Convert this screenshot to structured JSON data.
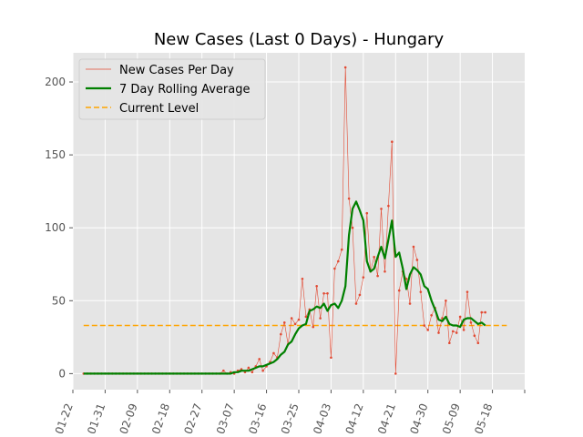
{
  "chart_data": {
    "type": "line",
    "title": "New Cases (Last 0 Days) - Hungary",
    "xlabel": "",
    "ylabel": "",
    "x_ticks": [
      "01-22",
      "01-31",
      "02-09",
      "02-18",
      "02-27",
      "03-07",
      "03-16",
      "03-25",
      "04-03",
      "04-12",
      "04-21",
      "04-30",
      "05-09",
      "05-18"
    ],
    "y_ticks": [
      0,
      50,
      100,
      150,
      200
    ],
    "xlim": [
      "2020-01-22",
      "2020-05-27"
    ],
    "ylim": [
      -11,
      220
    ],
    "grid": true,
    "legend_position": "upper-left",
    "colors": {
      "new_cases": "#e24a33",
      "rolling": "#008000",
      "current": "#ffa500",
      "background": "#e5e5e5",
      "grid": "#ffffff"
    },
    "x_dates": [
      "2020-01-25",
      "2020-01-26",
      "2020-01-27",
      "2020-01-28",
      "2020-01-29",
      "2020-01-30",
      "2020-01-31",
      "2020-02-01",
      "2020-02-02",
      "2020-02-03",
      "2020-02-04",
      "2020-02-05",
      "2020-02-06",
      "2020-02-07",
      "2020-02-08",
      "2020-02-09",
      "2020-02-10",
      "2020-02-11",
      "2020-02-12",
      "2020-02-13",
      "2020-02-14",
      "2020-02-15",
      "2020-02-16",
      "2020-02-17",
      "2020-02-18",
      "2020-02-19",
      "2020-02-20",
      "2020-02-21",
      "2020-02-22",
      "2020-02-23",
      "2020-02-24",
      "2020-02-25",
      "2020-02-26",
      "2020-02-27",
      "2020-02-28",
      "2020-02-29",
      "2020-03-01",
      "2020-03-02",
      "2020-03-03",
      "2020-03-04",
      "2020-03-05",
      "2020-03-06",
      "2020-03-07",
      "2020-03-08",
      "2020-03-09",
      "2020-03-10",
      "2020-03-11",
      "2020-03-12",
      "2020-03-13",
      "2020-03-14",
      "2020-03-15",
      "2020-03-16",
      "2020-03-17",
      "2020-03-18",
      "2020-03-19",
      "2020-03-20",
      "2020-03-21",
      "2020-03-22",
      "2020-03-23",
      "2020-03-24",
      "2020-03-25",
      "2020-03-26",
      "2020-03-27",
      "2020-03-28",
      "2020-03-29",
      "2020-03-30",
      "2020-03-31",
      "2020-04-01",
      "2020-04-02",
      "2020-04-03",
      "2020-04-04",
      "2020-04-05",
      "2020-04-06",
      "2020-04-07",
      "2020-04-08",
      "2020-04-09",
      "2020-04-10",
      "2020-04-11",
      "2020-04-12",
      "2020-04-13",
      "2020-04-14",
      "2020-04-15",
      "2020-04-16",
      "2020-04-17",
      "2020-04-18",
      "2020-04-19",
      "2020-04-20",
      "2020-04-21",
      "2020-04-22",
      "2020-04-23",
      "2020-04-24",
      "2020-04-25",
      "2020-04-26",
      "2020-04-27",
      "2020-04-28",
      "2020-04-29",
      "2020-04-30",
      "2020-05-01",
      "2020-05-02",
      "2020-05-03",
      "2020-05-04",
      "2020-05-05",
      "2020-05-06",
      "2020-05-07",
      "2020-05-08",
      "2020-05-09",
      "2020-05-10",
      "2020-05-11",
      "2020-05-12",
      "2020-05-13",
      "2020-05-14",
      "2020-05-15",
      "2020-05-16",
      "2020-05-17",
      "2020-05-18",
      "2020-05-19",
      "2020-05-20",
      "2020-05-21",
      "2020-05-22"
    ],
    "series": [
      {
        "name": "New Cases Per Day",
        "values": [
          0,
          0,
          0,
          0,
          0,
          0,
          0,
          0,
          0,
          0,
          0,
          0,
          0,
          0,
          0,
          0,
          0,
          0,
          0,
          0,
          0,
          0,
          0,
          0,
          0,
          0,
          0,
          0,
          0,
          0,
          0,
          0,
          0,
          0,
          0,
          0,
          0,
          0,
          0,
          2,
          0,
          1,
          0,
          2,
          3,
          1,
          4,
          1,
          5,
          10,
          2,
          5,
          8,
          14,
          11,
          27,
          35,
          20,
          38,
          34,
          37,
          65,
          39,
          44,
          32,
          60,
          38,
          55,
          55,
          11,
          72,
          77,
          85,
          210,
          120,
          100,
          48,
          54,
          66,
          110,
          70,
          80,
          67,
          113,
          70,
          115,
          159,
          0,
          57,
          70,
          65,
          48,
          87,
          78,
          56,
          33,
          30,
          40,
          45,
          28,
          38,
          50,
          21,
          29,
          28,
          39,
          30,
          56,
          35,
          26,
          21,
          42,
          42
        ],
        "color": "#e24a33"
      },
      {
        "name": "7 Day Rolling Average",
        "values": [
          0,
          0,
          0,
          0,
          0,
          0,
          0,
          0,
          0,
          0,
          0,
          0,
          0,
          0,
          0,
          0,
          0,
          0,
          0,
          0,
          0,
          0,
          0,
          0,
          0,
          0,
          0,
          0,
          0,
          0,
          0,
          0,
          0,
          0,
          0,
          0,
          0,
          0,
          0,
          0,
          0,
          0,
          1,
          1,
          2,
          2,
          2,
          3,
          4,
          5,
          5,
          6,
          7,
          8,
          10,
          13,
          15,
          20,
          22,
          27,
          31,
          33,
          34,
          43,
          44,
          46,
          45,
          48,
          43,
          47,
          48,
          45,
          50,
          60,
          95,
          113,
          118,
          112,
          105,
          77,
          70,
          72,
          80,
          87,
          79,
          92,
          105,
          80,
          83,
          72,
          58,
          68,
          73,
          71,
          68,
          60,
          58,
          50,
          44,
          37,
          36,
          39,
          34,
          33,
          33,
          32,
          37,
          38,
          38,
          36,
          34,
          35,
          33
        ],
        "color": "#008000"
      },
      {
        "name": "Current Level",
        "values": [
          33,
          33
        ],
        "x_range": [
          "2020-01-25",
          "2020-05-22"
        ],
        "color": "#ffa500"
      }
    ]
  }
}
